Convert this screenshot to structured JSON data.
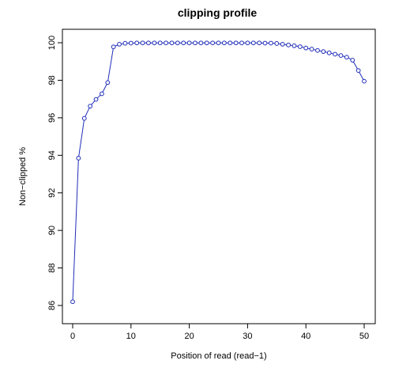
{
  "chart_data": {
    "type": "line",
    "title": "clipping profile",
    "xlabel": "Position of read (read−1)",
    "ylabel": "Non−clipped %",
    "xlim": [
      0,
      50
    ],
    "ylim": [
      86,
      100
    ],
    "x_ticks": [
      0,
      10,
      20,
      30,
      40,
      50
    ],
    "y_ticks": [
      86,
      88,
      90,
      92,
      94,
      96,
      98,
      100
    ],
    "x_tick_labels": [
      "0",
      "10",
      "20",
      "30",
      "40",
      "50"
    ],
    "y_tick_labels": [
      "86",
      "88",
      "90",
      "92",
      "94",
      "96",
      "98",
      "100"
    ],
    "grid": false,
    "legend": "none",
    "line_color": "#1f2db8",
    "marker": "open-circle",
    "x": [
      0,
      1,
      2,
      3,
      4,
      5,
      6,
      7,
      8,
      9,
      10,
      11,
      12,
      13,
      14,
      15,
      16,
      17,
      18,
      19,
      20,
      21,
      22,
      23,
      24,
      25,
      26,
      27,
      28,
      29,
      30,
      31,
      32,
      33,
      34,
      35,
      36,
      37,
      38,
      39,
      40,
      41,
      42,
      43,
      44,
      45,
      46,
      47,
      48,
      49,
      50
    ],
    "y": [
      86.2,
      93.85,
      95.97,
      96.62,
      96.98,
      97.28,
      97.88,
      99.78,
      99.92,
      99.97,
      99.98,
      99.99,
      99.99,
      99.99,
      99.99,
      99.99,
      99.99,
      99.99,
      99.99,
      99.99,
      99.99,
      99.99,
      99.99,
      99.99,
      99.99,
      99.99,
      99.99,
      99.99,
      99.99,
      99.99,
      99.99,
      99.99,
      99.99,
      99.98,
      99.98,
      99.96,
      99.92,
      99.88,
      99.84,
      99.79,
      99.72,
      99.66,
      99.59,
      99.53,
      99.46,
      99.39,
      99.32,
      99.23,
      99.07,
      98.52,
      97.95
    ]
  }
}
